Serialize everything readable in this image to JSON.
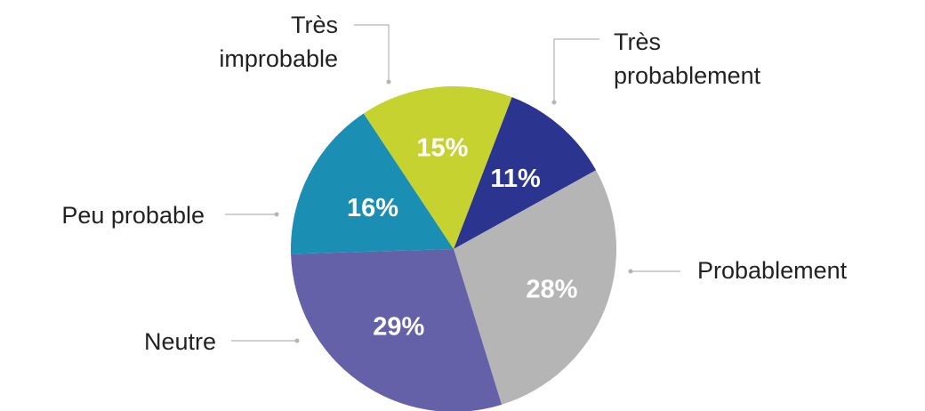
{
  "chart_data": {
    "type": "pie",
    "title": "",
    "slices": [
      {
        "label": "Très probablement",
        "label_lines": [
          "Très",
          "probablement"
        ],
        "value": 11,
        "value_label": "11%",
        "color": "#2b3590"
      },
      {
        "label": "Probablement",
        "label_lines": [
          "Probablement"
        ],
        "value": 28,
        "value_label": "28%",
        "color": "#b5b5b5"
      },
      {
        "label": "Neutre",
        "label_lines": [
          "Neutre"
        ],
        "value": 29,
        "value_label": "29%",
        "color": "#6461a8"
      },
      {
        "label": "Peu probable",
        "label_lines": [
          "Peu probable"
        ],
        "value": 16,
        "value_label": "16%",
        "color": "#1b8fb3"
      },
      {
        "label": "Très improbable",
        "label_lines": [
          "Très",
          "improbable"
        ],
        "value": 15,
        "value_label": "15%",
        "color": "#c5d22f"
      }
    ],
    "legend": "callouts around pie"
  }
}
